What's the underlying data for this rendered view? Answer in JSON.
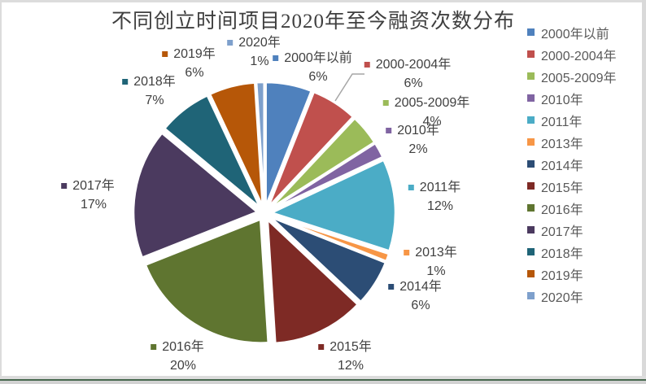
{
  "title": "不同创立时间项目2020年至今融资次数分布",
  "chart_data": {
    "type": "pie",
    "title": "不同创立时间项目2020年至今融资次数分布",
    "unit": "%",
    "start_angle_deg": 0,
    "direction": "clockwise",
    "exploded": true,
    "legend_position": "right",
    "categories": [
      "2000年以前",
      "2000-2004年",
      "2005-2009年",
      "2010年",
      "2011年",
      "2013年",
      "2014年",
      "2015年",
      "2016年",
      "2017年",
      "2018年",
      "2019年",
      "2020年"
    ],
    "values": [
      6,
      6,
      4,
      2,
      12,
      1,
      6,
      12,
      20,
      17,
      7,
      6,
      1
    ],
    "colors": [
      "#4F81BD",
      "#C0504D",
      "#9BBB59",
      "#8064A2",
      "#4BACC6",
      "#F79646",
      "#2C4D75",
      "#7E2A25",
      "#5F7530",
      "#4B3A5F",
      "#1F6477",
      "#B65708",
      "#7EA0CC"
    ],
    "data_labels": [
      "2000年以前 6%",
      "2000-2004年 6%",
      "2005-2009年 4%",
      "2010年 2%",
      "2011年 12%",
      "2013年 1%",
      "2014年 6%",
      "2015年 12%",
      "2016年 20%",
      "2017年 17%",
      "2018年 7%",
      "2019年 6%",
      "2020年 1%"
    ],
    "percent_suffix": "%"
  },
  "legend": {
    "items": [
      "2000年以前",
      "2000-2004年",
      "2005-2009年",
      "2010年",
      "2011年",
      "2013年",
      "2014年",
      "2015年",
      "2016年",
      "2017年",
      "2018年",
      "2019年",
      "2020年"
    ]
  }
}
